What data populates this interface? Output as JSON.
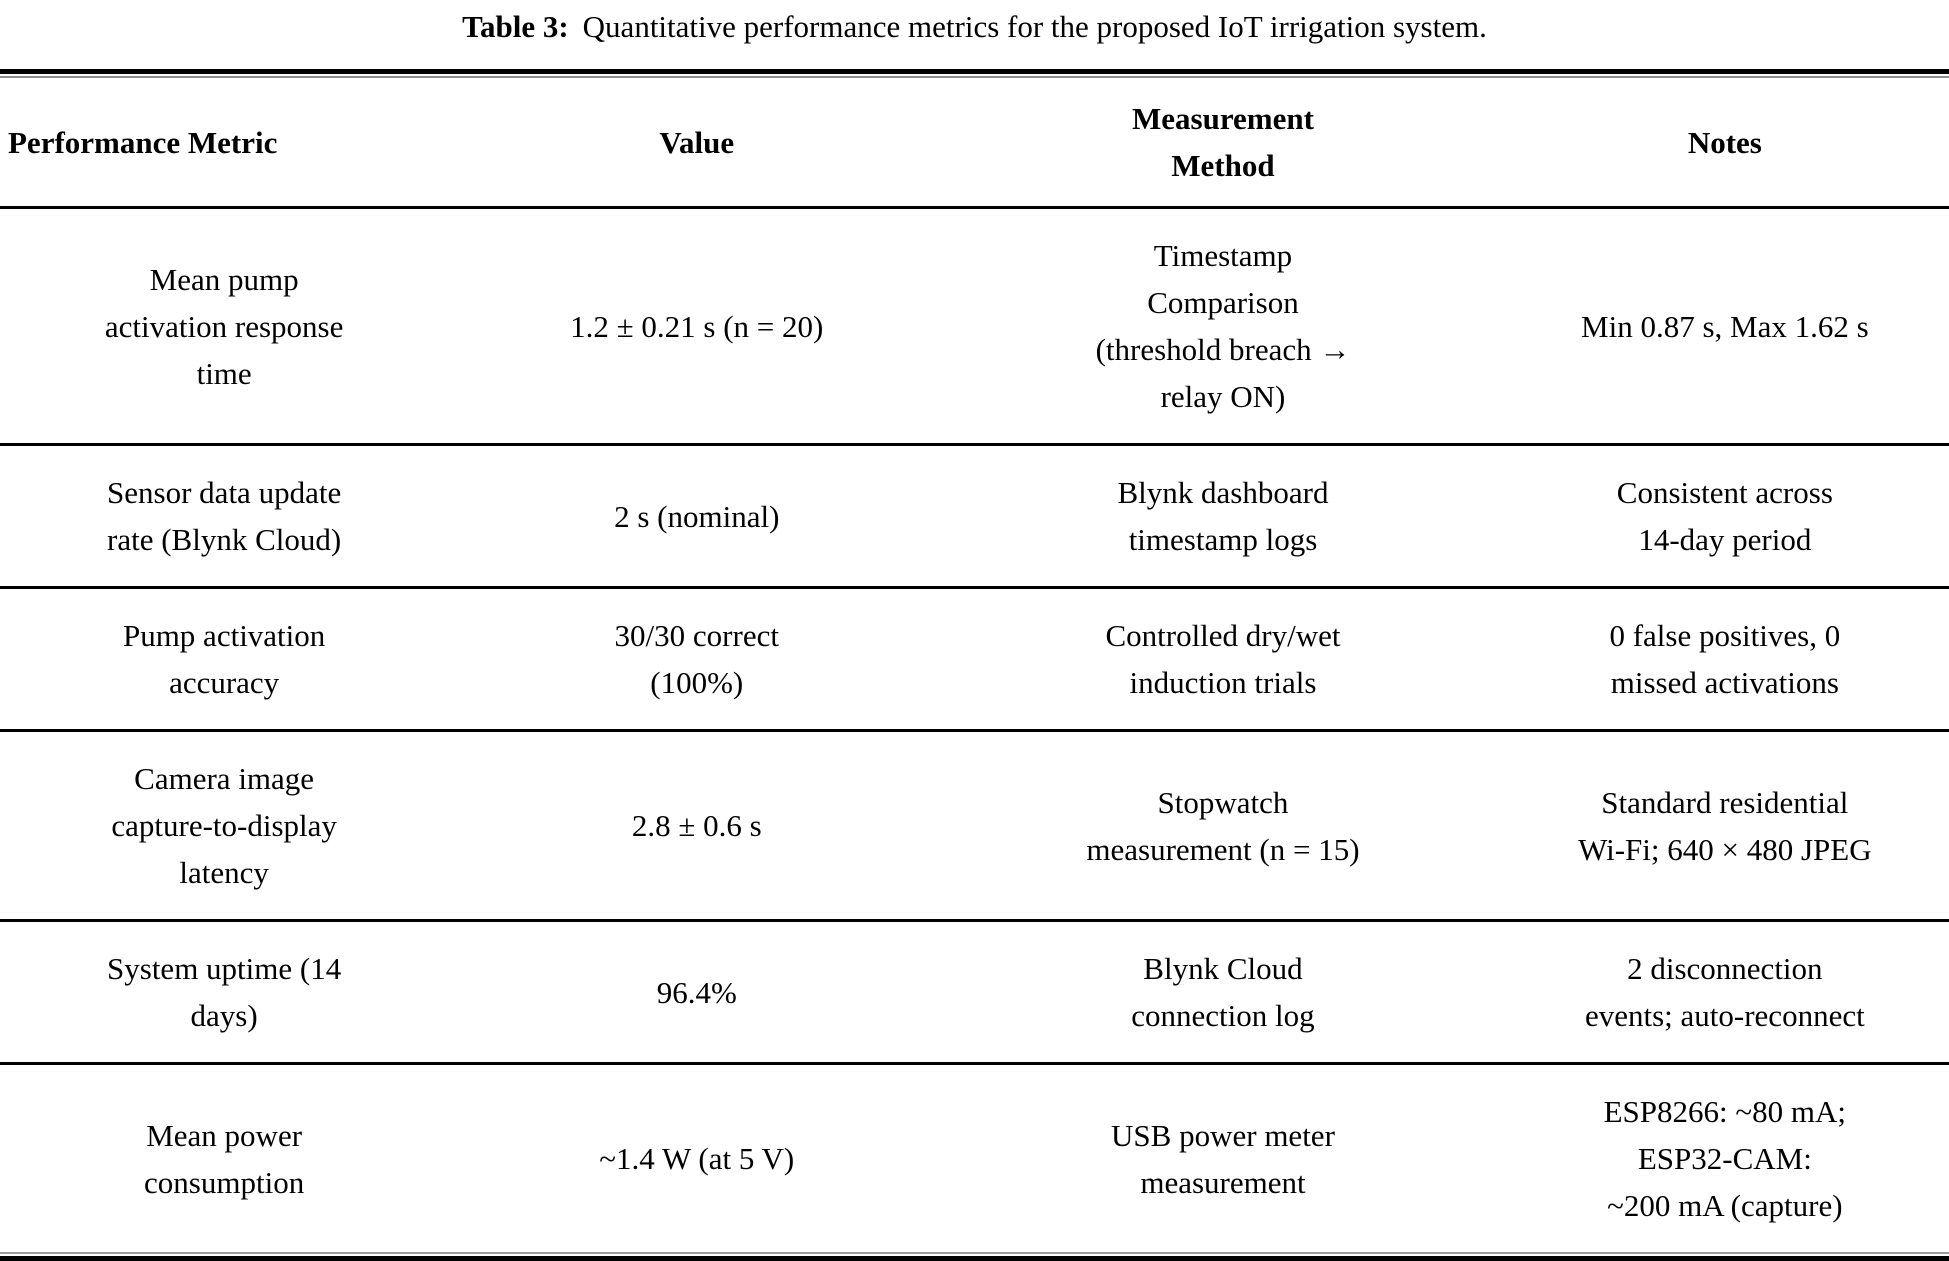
{
  "caption": {
    "label": "Table 3:",
    "text": "Quantitative performance metrics for the proposed IoT irrigation system."
  },
  "table": {
    "columns": [
      {
        "key": "metric",
        "label": "Performance Metric"
      },
      {
        "key": "value",
        "label": "Value"
      },
      {
        "key": "method",
        "label": "Measurement\nMethod"
      },
      {
        "key": "notes",
        "label": "Notes"
      }
    ],
    "rows": [
      {
        "metric": "Mean pump\nactivation response\ntime",
        "value": "1.2 ± 0.21 s (n = 20)",
        "method": "Timestamp\nComparison\n(threshold breach →\nrelay ON)",
        "notes": "Min 0.87 s, Max 1.62 s"
      },
      {
        "metric": "Sensor data update\nrate (Blynk Cloud)",
        "value": "2 s (nominal)",
        "method": "Blynk dashboard\ntimestamp logs",
        "notes": "Consistent across\n14-day period"
      },
      {
        "metric": "Pump activation\naccuracy",
        "value": "30/30 correct\n(100%)",
        "method": "Controlled dry/wet\ninduction trials",
        "notes": "0 false positives, 0\nmissed activations"
      },
      {
        "metric": "Camera image\ncapture-to-display\nlatency",
        "value": "2.8 ± 0.6 s",
        "method": "Stopwatch\nmeasurement (n = 15)",
        "notes": "Standard residential\nWi-Fi; 640 × 480 JPEG"
      },
      {
        "metric": "System uptime (14\ndays)",
        "value": "96.4%",
        "method": "Blynk Cloud\nconnection log",
        "notes": "2 disconnection\nevents; auto-reconnect"
      },
      {
        "metric": "Mean power\nconsumption",
        "value": "~1.4 W (at 5 V)",
        "method": "USB power meter\nmeasurement",
        "notes": "ESP8266: ~80 mA;\nESP32-CAM:\n~200 mA (capture)"
      }
    ]
  },
  "colors": {
    "text": "#000000",
    "background": "#ffffff",
    "rule": "#000000"
  }
}
